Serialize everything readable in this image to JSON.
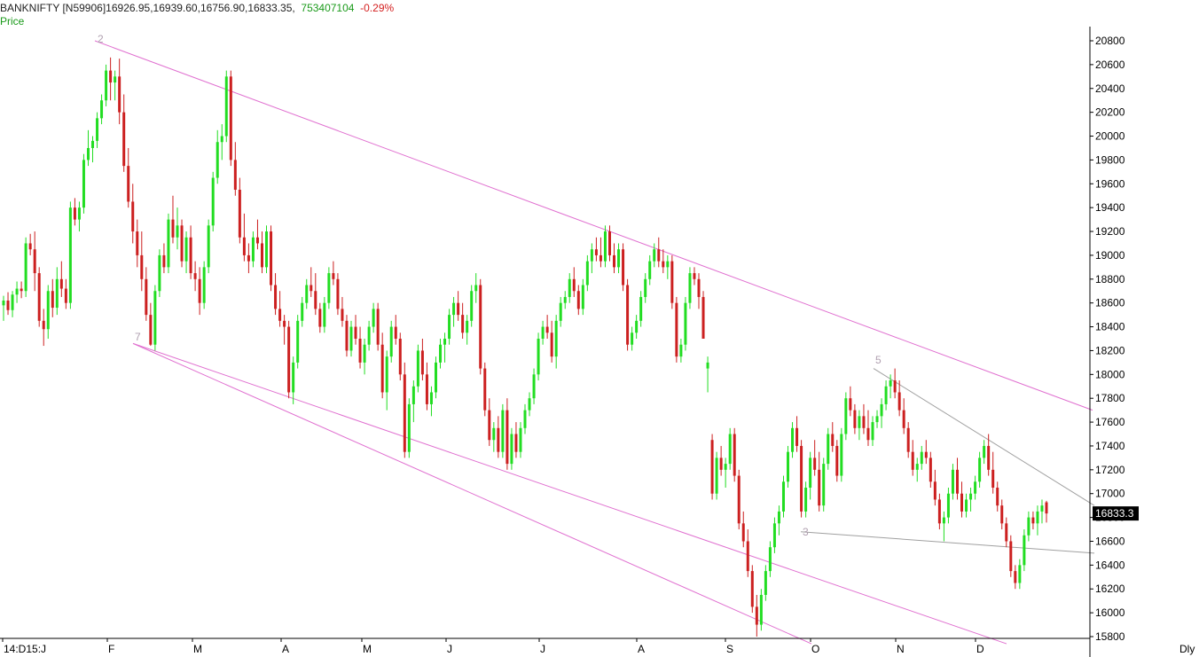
{
  "header": {
    "symbol": "BANKNIFTY [N59906]",
    "ohlc": "16926.95,16939.60,16756.90,16833.35,",
    "volume": "753407104",
    "change": "-0.29%",
    "series_label": "Price"
  },
  "timeframe": "Dly",
  "colors": {
    "up": "#22dd22",
    "down": "#cc2020",
    "channel": "#e070d0",
    "trend": "#a0a0a0",
    "last_bg": "#000000"
  },
  "chart_data": {
    "type": "candlestick",
    "y_axis": {
      "min": 15800,
      "max": 20800,
      "ticks": [
        15800,
        16000,
        16200,
        16400,
        16600,
        16800,
        17000,
        17200,
        17400,
        17600,
        17800,
        18000,
        18200,
        18400,
        18600,
        18800,
        19000,
        19200,
        19400,
        19600,
        19800,
        20000,
        20200,
        20400,
        20600,
        20800
      ]
    },
    "x_labels": [
      "14:D15:J",
      "F",
      "M",
      "A",
      "M",
      "J",
      "J",
      "A",
      "S",
      "O",
      "N",
      "D"
    ],
    "last_price_label": "16833.3",
    "wave_labels": [
      "2",
      "7",
      "5",
      "3"
    ],
    "candles": [
      [
        18580,
        18660,
        18450,
        18620
      ],
      [
        18620,
        18690,
        18500,
        18540
      ],
      [
        18540,
        18700,
        18480,
        18670
      ],
      [
        18670,
        18780,
        18600,
        18720
      ],
      [
        18720,
        18780,
        18640,
        18700
      ],
      [
        18700,
        19150,
        18650,
        19100
      ],
      [
        19100,
        19180,
        19000,
        19050
      ],
      [
        19050,
        19200,
        18700,
        18850
      ],
      [
        18850,
        18900,
        18400,
        18450
      ],
      [
        18450,
        18550,
        18240,
        18380
      ],
      [
        18380,
        18750,
        18300,
        18700
      ],
      [
        18700,
        18800,
        18480,
        18560
      ],
      [
        18560,
        18900,
        18500,
        18800
      ],
      [
        18800,
        18950,
        18650,
        18720
      ],
      [
        18720,
        18800,
        18550,
        18600
      ],
      [
        18600,
        19450,
        18550,
        19400
      ],
      [
        19400,
        19480,
        19250,
        19300
      ],
      [
        19300,
        19450,
        19200,
        19400
      ],
      [
        19400,
        19850,
        19350,
        19800
      ],
      [
        19800,
        20050,
        19750,
        19900
      ],
      [
        19900,
        20000,
        19780,
        19960
      ],
      [
        19960,
        20200,
        19900,
        20150
      ],
      [
        20150,
        20350,
        20100,
        20300
      ],
      [
        20300,
        20600,
        20250,
        20550
      ],
      [
        20550,
        20660,
        20300,
        20450
      ],
      [
        20450,
        20550,
        20300,
        20500
      ],
      [
        20500,
        20650,
        20100,
        20200
      ],
      [
        20200,
        20350,
        19700,
        19750
      ],
      [
        19750,
        19900,
        19400,
        19450
      ],
      [
        19450,
        19600,
        19100,
        19200
      ],
      [
        19200,
        19300,
        18900,
        19000
      ],
      [
        19000,
        19200,
        18700,
        18800
      ],
      [
        18800,
        18900,
        18450,
        18500
      ],
      [
        18500,
        18600,
        18240,
        18250
      ],
      [
        18250,
        18750,
        18200,
        18700
      ],
      [
        18700,
        19050,
        18650,
        19000
      ],
      [
        19000,
        19100,
        18850,
        18900
      ],
      [
        18900,
        19350,
        18850,
        19300
      ],
      [
        19300,
        19500,
        19100,
        19150
      ],
      [
        19150,
        19400,
        19050,
        19250
      ],
      [
        19250,
        19300,
        18900,
        18950
      ],
      [
        18950,
        19200,
        18850,
        19150
      ],
      [
        19150,
        19250,
        18800,
        18850
      ],
      [
        18850,
        18950,
        18700,
        18800
      ],
      [
        18800,
        18900,
        18500,
        18600
      ],
      [
        18600,
        18950,
        18550,
        18900
      ],
      [
        18900,
        19300,
        18850,
        19250
      ],
      [
        19250,
        19700,
        19200,
        19650
      ],
      [
        19650,
        20050,
        19600,
        19950
      ],
      [
        19950,
        20100,
        19800,
        20000
      ],
      [
        20000,
        20550,
        19950,
        20500
      ],
      [
        20500,
        20550,
        19750,
        19800
      ],
      [
        19800,
        19950,
        19500,
        19550
      ],
      [
        19550,
        19650,
        19100,
        19150
      ],
      [
        19150,
        19350,
        18950,
        19000
      ],
      [
        19000,
        19100,
        18850,
        18950
      ],
      [
        18950,
        19200,
        18900,
        19150
      ],
      [
        19150,
        19300,
        19050,
        19100
      ],
      [
        19100,
        19200,
        18850,
        18900
      ],
      [
        18900,
        19250,
        18850,
        19200
      ],
      [
        19200,
        19250,
        18700,
        18750
      ],
      [
        18750,
        18850,
        18500,
        18550
      ],
      [
        18550,
        18700,
        18400,
        18450
      ],
      [
        18450,
        18500,
        18250,
        18400
      ],
      [
        18400,
        18450,
        17800,
        17850
      ],
      [
        17850,
        18150,
        17750,
        18100
      ],
      [
        18100,
        18500,
        18050,
        18450
      ],
      [
        18450,
        18650,
        18400,
        18600
      ],
      [
        18600,
        18800,
        18550,
        18750
      ],
      [
        18750,
        18900,
        18650,
        18700
      ],
      [
        18700,
        18850,
        18500,
        18550
      ],
      [
        18550,
        18600,
        18350,
        18400
      ],
      [
        18400,
        18650,
        18350,
        18600
      ],
      [
        18600,
        18900,
        18550,
        18850
      ],
      [
        18850,
        18950,
        18750,
        18800
      ],
      [
        18800,
        18850,
        18500,
        18550
      ],
      [
        18550,
        18650,
        18400,
        18450
      ],
      [
        18450,
        18500,
        18150,
        18200
      ],
      [
        18200,
        18450,
        18150,
        18400
      ],
      [
        18400,
        18500,
        18250,
        18300
      ],
      [
        18300,
        18400,
        18050,
        18100
      ],
      [
        18100,
        18300,
        18000,
        18250
      ],
      [
        18250,
        18450,
        18200,
        18400
      ],
      [
        18400,
        18600,
        18350,
        18550
      ],
      [
        18550,
        18600,
        18200,
        18250
      ],
      [
        18250,
        18350,
        17800,
        17850
      ],
      [
        17850,
        18200,
        17700,
        18150
      ],
      [
        18150,
        18450,
        18100,
        18400
      ],
      [
        18400,
        18500,
        18250,
        18300
      ],
      [
        18300,
        18350,
        17950,
        18000
      ],
      [
        18000,
        18100,
        17300,
        17350
      ],
      [
        17350,
        17800,
        17300,
        17750
      ],
      [
        17750,
        17950,
        17600,
        17900
      ],
      [
        17900,
        18250,
        17850,
        18200
      ],
      [
        18200,
        18300,
        17950,
        18000
      ],
      [
        18000,
        18100,
        17700,
        17750
      ],
      [
        17750,
        17900,
        17650,
        17850
      ],
      [
        17850,
        18150,
        17800,
        18100
      ],
      [
        18100,
        18300,
        18050,
        18250
      ],
      [
        18250,
        18350,
        18100,
        18300
      ],
      [
        18300,
        18550,
        18250,
        18500
      ],
      [
        18500,
        18650,
        18400,
        18600
      ],
      [
        18600,
        18700,
        18450,
        18500
      ],
      [
        18500,
        18600,
        18300,
        18350
      ],
      [
        18350,
        18500,
        18250,
        18450
      ],
      [
        18450,
        18750,
        18400,
        18700
      ],
      [
        18700,
        18850,
        18600,
        18750
      ],
      [
        18750,
        18800,
        18000,
        18050
      ],
      [
        18050,
        18100,
        17650,
        17700
      ],
      [
        17700,
        17800,
        17400,
        17450
      ],
      [
        17450,
        17600,
        17350,
        17550
      ],
      [
        17550,
        17650,
        17300,
        17350
      ],
      [
        17350,
        17750,
        17300,
        17700
      ],
      [
        17700,
        17800,
        17200,
        17250
      ],
      [
        17250,
        17550,
        17200,
        17500
      ],
      [
        17500,
        17600,
        17300,
        17350
      ],
      [
        17350,
        17600,
        17300,
        17550
      ],
      [
        17550,
        17750,
        17500,
        17700
      ],
      [
        17700,
        17850,
        17650,
        17800
      ],
      [
        17800,
        18050,
        17750,
        18000
      ],
      [
        18000,
        18350,
        17950,
        18300
      ],
      [
        18300,
        18450,
        18250,
        18400
      ],
      [
        18400,
        18500,
        18300,
        18350
      ],
      [
        18350,
        18450,
        18100,
        18150
      ],
      [
        18150,
        18500,
        18050,
        18450
      ],
      [
        18450,
        18650,
        18400,
        18600
      ],
      [
        18600,
        18700,
        18550,
        18650
      ],
      [
        18650,
        18850,
        18600,
        18800
      ],
      [
        18800,
        18900,
        18650,
        18700
      ],
      [
        18700,
        18750,
        18500,
        18550
      ],
      [
        18550,
        18800,
        18500,
        18750
      ],
      [
        18750,
        19000,
        18700,
        18950
      ],
      [
        18950,
        19100,
        18850,
        19050
      ],
      [
        19050,
        19150,
        18950,
        19000
      ],
      [
        19000,
        19150,
        18900,
        18950
      ],
      [
        18950,
        19250,
        18900,
        19200
      ],
      [
        19200,
        19250,
        18950,
        19000
      ],
      [
        19000,
        19100,
        18850,
        18900
      ],
      [
        18900,
        19100,
        18850,
        19050
      ],
      [
        19050,
        19100,
        18700,
        18750
      ],
      [
        18750,
        18800,
        18200,
        18250
      ],
      [
        18250,
        18400,
        18200,
        18350
      ],
      [
        18350,
        18500,
        18300,
        18450
      ],
      [
        18450,
        18700,
        18400,
        18650
      ],
      [
        18650,
        18850,
        18600,
        18800
      ],
      [
        18800,
        19000,
        18750,
        18950
      ],
      [
        18950,
        19100,
        18900,
        19050
      ],
      [
        19050,
        19150,
        18900,
        18950
      ],
      [
        18950,
        19050,
        18850,
        18900
      ],
      [
        18900,
        19000,
        18800,
        18950
      ],
      [
        18950,
        19000,
        18550,
        18600
      ],
      [
        18600,
        18650,
        18100,
        18150
      ],
      [
        18150,
        18300,
        18100,
        18250
      ],
      [
        18250,
        18650,
        18200,
        18600
      ],
      [
        18600,
        18900,
        18550,
        18850
      ],
      [
        18850,
        18900,
        18750,
        18800
      ],
      [
        18800,
        18850,
        18550,
        18650
      ],
      [
        18650,
        18700,
        18300,
        18300
      ],
      [
        18050,
        18150,
        17850,
        18100
      ],
      [
        17450,
        17500,
        16950,
        17000
      ],
      [
        17000,
        17350,
        16950,
        17300
      ],
      [
        17300,
        17400,
        17150,
        17200
      ],
      [
        17200,
        17300,
        17050,
        17250
      ],
      [
        17250,
        17550,
        17200,
        17500
      ],
      [
        17500,
        17550,
        17100,
        17150
      ],
      [
        17150,
        17200,
        16700,
        16750
      ],
      [
        16750,
        16850,
        16550,
        16600
      ],
      [
        16600,
        16700,
        16300,
        16350
      ],
      [
        16350,
        16400,
        16000,
        16050
      ],
      [
        16050,
        16150,
        15800,
        15900
      ],
      [
        15900,
        16200,
        15850,
        16150
      ],
      [
        16150,
        16400,
        16100,
        16350
      ],
      [
        16350,
        16600,
        16300,
        16550
      ],
      [
        16550,
        16800,
        16500,
        16750
      ],
      [
        16750,
        16900,
        16650,
        16850
      ],
      [
        16850,
        17150,
        16800,
        17100
      ],
      [
        17100,
        17400,
        17050,
        17350
      ],
      [
        17350,
        17600,
        17300,
        17550
      ],
      [
        17550,
        17650,
        17350,
        17400
      ],
      [
        17400,
        17450,
        16800,
        16850
      ],
      [
        16850,
        17100,
        16800,
        17050
      ],
      [
        17050,
        17350,
        16950,
        17300
      ],
      [
        17300,
        17450,
        17150,
        17200
      ],
      [
        17200,
        17350,
        16850,
        16900
      ],
      [
        16900,
        17300,
        16850,
        17250
      ],
      [
        17250,
        17550,
        17200,
        17500
      ],
      [
        17500,
        17600,
        17350,
        17400
      ],
      [
        17400,
        17450,
        17100,
        17150
      ],
      [
        17150,
        17550,
        17100,
        17500
      ],
      [
        17500,
        17850,
        17450,
        17800
      ],
      [
        17800,
        17900,
        17650,
        17700
      ],
      [
        17700,
        17750,
        17500,
        17550
      ],
      [
        17550,
        17700,
        17450,
        17650
      ],
      [
        17650,
        17750,
        17500,
        17550
      ],
      [
        17550,
        17700,
        17400,
        17450
      ],
      [
        17450,
        17650,
        17400,
        17600
      ],
      [
        17600,
        17700,
        17550,
        17650
      ],
      [
        17650,
        17800,
        17550,
        17750
      ],
      [
        17750,
        17950,
        17700,
        17900
      ],
      [
        17900,
        18000,
        17800,
        17950
      ],
      [
        17950,
        18050,
        17800,
        17850
      ],
      [
        17850,
        17950,
        17650,
        17700
      ],
      [
        17700,
        17800,
        17500,
        17550
      ],
      [
        17550,
        17600,
        17300,
        17350
      ],
      [
        17350,
        17450,
        17150,
        17200
      ],
      [
        17200,
        17300,
        17100,
        17250
      ],
      [
        17250,
        17400,
        17200,
        17350
      ],
      [
        17350,
        17450,
        17250,
        17300
      ],
      [
        17300,
        17350,
        17050,
        17100
      ],
      [
        17100,
        17200,
        16900,
        16950
      ],
      [
        16950,
        17000,
        16700,
        16750
      ],
      [
        16750,
        16850,
        16600,
        16800
      ],
      [
        16800,
        17050,
        16750,
        17000
      ],
      [
        17000,
        17250,
        16950,
        17200
      ],
      [
        17200,
        17300,
        16950,
        17000
      ],
      [
        17000,
        17100,
        16800,
        16850
      ],
      [
        16850,
        17000,
        16800,
        16950
      ],
      [
        16950,
        17050,
        16850,
        17000
      ],
      [
        17000,
        17150,
        16950,
        17100
      ],
      [
        17100,
        17350,
        17050,
        17300
      ],
      [
        17300,
        17450,
        17250,
        17400
      ],
      [
        17400,
        17500,
        17150,
        17200
      ],
      [
        17200,
        17350,
        17000,
        17050
      ],
      [
        17050,
        17100,
        16850,
        16900
      ],
      [
        16900,
        16950,
        16700,
        16750
      ],
      [
        16750,
        16800,
        16550,
        16600
      ],
      [
        16600,
        16650,
        16300,
        16350
      ],
      [
        16350,
        16400,
        16200,
        16250
      ],
      [
        16250,
        16450,
        16200,
        16400
      ],
      [
        16400,
        16700,
        16350,
        16650
      ],
      [
        16650,
        16850,
        16600,
        16800
      ],
      [
        16800,
        16850,
        16700,
        16750
      ],
      [
        16750,
        16900,
        16650,
        16850
      ],
      [
        16850,
        16950,
        16750,
        16900
      ],
      [
        16926.95,
        16939.6,
        16756.9,
        16833.35
      ]
    ]
  }
}
